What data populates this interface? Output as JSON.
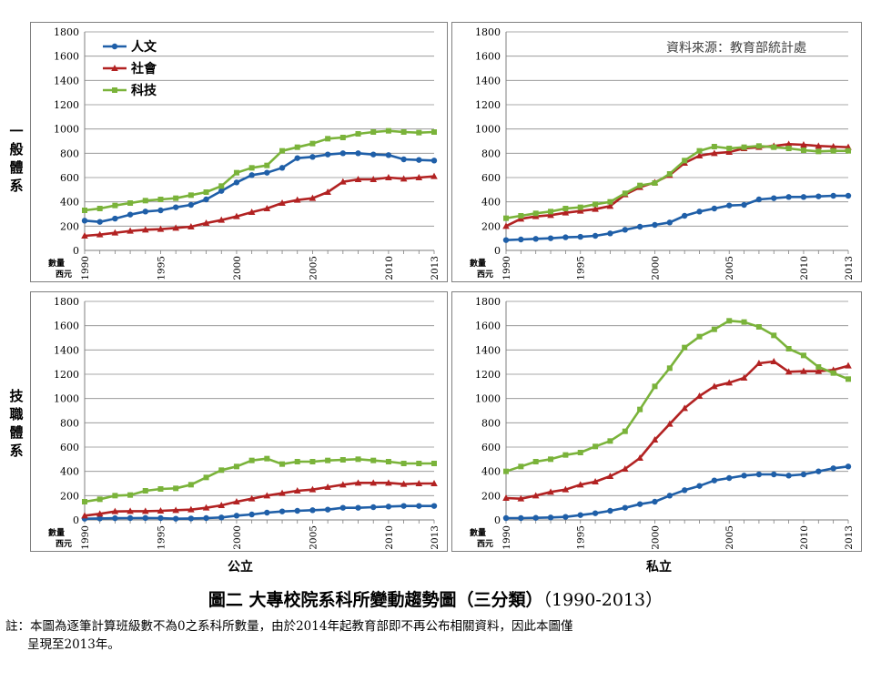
{
  "row_labels": [
    "一般體系",
    "技職體系"
  ],
  "column_labels": [
    "公立",
    "私立"
  ],
  "source_note": "資料來源：教育部統計處",
  "figure_title": "圖二  大專校院系科所變動趨勢圖（三分類）",
  "figure_title_years": "（1990-2013）",
  "footnote_line1": "註：本圖為逐筆計算班級數不為0之系科所數量，由於2014年起教育部即不再公布相關資料，因此本圖僅",
  "footnote_line2": "呈現至2013年。",
  "y_axis_unit": "數量",
  "x_axis_unit": "西元",
  "legend": [
    {
      "name": "人文",
      "color": "#1f5fa8",
      "marker": "circle"
    },
    {
      "name": "社會",
      "color": "#b22222",
      "marker": "triangle"
    },
    {
      "name": "科技",
      "color": "#7ab33a",
      "marker": "square"
    }
  ],
  "chart_data": [
    {
      "type": "line",
      "panel": "一般體系 公立",
      "x": [
        1990,
        1991,
        1992,
        1993,
        1994,
        1995,
        1996,
        1997,
        1998,
        1999,
        2000,
        2001,
        2002,
        2003,
        2004,
        2005,
        2006,
        2007,
        2008,
        2009,
        2010,
        2011,
        2012,
        2013
      ],
      "xticks": [
        1990,
        1995,
        2000,
        2005,
        2010,
        2013
      ],
      "ylim": [
        0,
        1800
      ],
      "yticks": [
        0,
        200,
        400,
        600,
        800,
        1000,
        1200,
        1400,
        1600,
        1800
      ],
      "series": [
        {
          "name": "人文",
          "values": [
            245,
            235,
            262,
            295,
            320,
            330,
            355,
            375,
            420,
            490,
            560,
            620,
            640,
            680,
            760,
            770,
            790,
            800,
            800,
            790,
            785,
            750,
            745,
            740
          ]
        },
        {
          "name": "社會",
          "values": [
            120,
            130,
            145,
            160,
            170,
            175,
            185,
            195,
            225,
            250,
            280,
            315,
            345,
            390,
            415,
            430,
            480,
            565,
            585,
            585,
            600,
            590,
            600,
            610
          ]
        },
        {
          "name": "科技",
          "values": [
            330,
            345,
            370,
            390,
            410,
            420,
            430,
            455,
            480,
            530,
            640,
            680,
            700,
            820,
            850,
            880,
            920,
            930,
            960,
            975,
            985,
            975,
            970,
            975
          ]
        }
      ]
    },
    {
      "type": "line",
      "panel": "一般體系 私立",
      "x": [
        1990,
        1991,
        1992,
        1993,
        1994,
        1995,
        1996,
        1997,
        1998,
        1999,
        2000,
        2001,
        2002,
        2003,
        2004,
        2005,
        2006,
        2007,
        2008,
        2009,
        2010,
        2011,
        2012,
        2013
      ],
      "xticks": [
        1990,
        1995,
        2000,
        2005,
        2010,
        2013
      ],
      "ylim": [
        0,
        1800
      ],
      "yticks": [
        0,
        200,
        400,
        600,
        800,
        1000,
        1200,
        1400,
        1600,
        1800
      ],
      "series": [
        {
          "name": "人文",
          "values": [
            85,
            90,
            95,
            100,
            108,
            112,
            120,
            140,
            170,
            195,
            210,
            230,
            285,
            320,
            345,
            370,
            375,
            420,
            430,
            440,
            440,
            445,
            450,
            450
          ]
        },
        {
          "name": "社會",
          "values": [
            200,
            260,
            280,
            290,
            310,
            325,
            340,
            365,
            460,
            520,
            560,
            620,
            720,
            780,
            800,
            810,
            840,
            850,
            860,
            875,
            870,
            860,
            855,
            850
          ]
        },
        {
          "name": "科技",
          "values": [
            265,
            285,
            305,
            320,
            345,
            355,
            380,
            400,
            470,
            535,
            555,
            630,
            740,
            820,
            855,
            840,
            850,
            860,
            850,
            840,
            825,
            815,
            820,
            820
          ]
        }
      ]
    },
    {
      "type": "line",
      "panel": "技職體系 公立",
      "x": [
        1990,
        1991,
        1992,
        1993,
        1994,
        1995,
        1996,
        1997,
        1998,
        1999,
        2000,
        2001,
        2002,
        2003,
        2004,
        2005,
        2006,
        2007,
        2008,
        2009,
        2010,
        2011,
        2012,
        2013
      ],
      "xticks": [
        1990,
        1995,
        2000,
        2005,
        2010,
        2013
      ],
      "ylim": [
        0,
        1800
      ],
      "yticks": [
        0,
        200,
        400,
        600,
        800,
        1000,
        1200,
        1400,
        1600,
        1800
      ],
      "series": [
        {
          "name": "人文",
          "values": [
            10,
            12,
            14,
            15,
            16,
            15,
            10,
            12,
            15,
            20,
            35,
            45,
            60,
            70,
            75,
            80,
            85,
            100,
            100,
            105,
            110,
            115,
            115,
            115
          ]
        },
        {
          "name": "社會",
          "values": [
            35,
            50,
            70,
            72,
            72,
            75,
            80,
            85,
            100,
            120,
            150,
            175,
            200,
            220,
            240,
            250,
            270,
            290,
            305,
            305,
            305,
            295,
            300,
            300
          ]
        },
        {
          "name": "科技",
          "values": [
            150,
            170,
            200,
            205,
            240,
            255,
            260,
            290,
            350,
            410,
            440,
            490,
            505,
            460,
            480,
            480,
            490,
            495,
            500,
            490,
            480,
            465,
            465,
            465
          ]
        }
      ]
    },
    {
      "type": "line",
      "panel": "技職體系 私立",
      "x": [
        1990,
        1991,
        1992,
        1993,
        1994,
        1995,
        1996,
        1997,
        1998,
        1999,
        2000,
        2001,
        2002,
        2003,
        2004,
        2005,
        2006,
        2007,
        2008,
        2009,
        2010,
        2011,
        2012,
        2013
      ],
      "xticks": [
        1990,
        1995,
        2000,
        2005,
        2010,
        2013
      ],
      "ylim": [
        0,
        1800
      ],
      "yticks": [
        0,
        200,
        400,
        600,
        800,
        1000,
        1200,
        1400,
        1600,
        1800
      ],
      "series": [
        {
          "name": "人文",
          "values": [
            15,
            15,
            17,
            20,
            25,
            40,
            55,
            75,
            100,
            130,
            150,
            200,
            245,
            280,
            325,
            345,
            365,
            375,
            375,
            365,
            375,
            400,
            425,
            440
          ]
        },
        {
          "name": "社會",
          "values": [
            180,
            175,
            200,
            230,
            250,
            290,
            315,
            360,
            420,
            510,
            660,
            790,
            920,
            1020,
            1100,
            1130,
            1170,
            1290,
            1305,
            1220,
            1225,
            1225,
            1235,
            1270
          ]
        },
        {
          "name": "科技",
          "values": [
            400,
            440,
            480,
            500,
            535,
            555,
            605,
            650,
            730,
            910,
            1100,
            1250,
            1420,
            1510,
            1570,
            1640,
            1630,
            1590,
            1520,
            1410,
            1355,
            1260,
            1210,
            1160
          ]
        }
      ]
    }
  ]
}
